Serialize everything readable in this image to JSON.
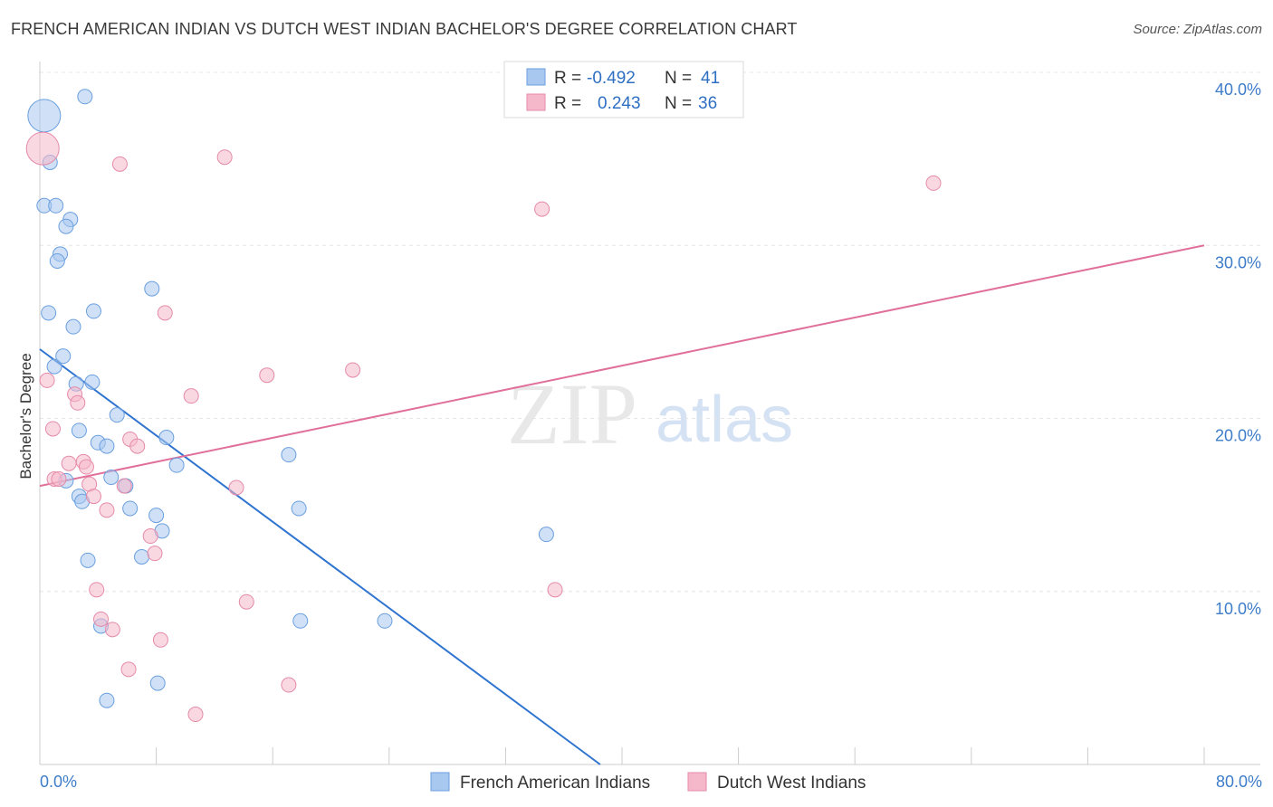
{
  "header": {
    "title": "FRENCH AMERICAN INDIAN VS DUTCH WEST INDIAN BACHELOR'S DEGREE CORRELATION CHART",
    "source": "Source: ZipAtlas.com"
  },
  "watermark": {
    "zip": "ZIP",
    "atlas": "atlas"
  },
  "legend": {
    "rows": [
      {
        "r_label": "R =",
        "r_value": "-0.492",
        "n_label": "N =",
        "n_value": "41",
        "color": "#a9c8f0"
      },
      {
        "r_label": "R =",
        "r_value": "0.243",
        "n_label": "N =",
        "n_value": "36",
        "color": "#f5b8cb"
      }
    ]
  },
  "bottom_legend": [
    {
      "label": "French American Indians",
      "color": "#a9c8f0"
    },
    {
      "label": "Dutch West Indians",
      "color": "#f5b8cb"
    }
  ],
  "chart_data": {
    "type": "scatter",
    "title": "FRENCH AMERICAN INDIAN VS DUTCH WEST INDIAN BACHELOR'S DEGREE CORRELATION CHART",
    "xlabel": "",
    "ylabel": "Bachelor's Degree",
    "xlim": [
      0,
      80
    ],
    "ylim": [
      0,
      40
    ],
    "x_tick_labels": [
      "0.0%",
      "80.0%"
    ],
    "y_ticks": [
      10,
      20,
      30,
      40
    ],
    "y_tick_labels": [
      "10.0%",
      "20.0%",
      "30.0%",
      "40.0%"
    ],
    "grid": "horizontal dashed",
    "legend_position": "top-center",
    "series": [
      {
        "name": "French American Indians",
        "color": "#a9c8f0",
        "stroke": "#6a9fdf",
        "trend_color": "#2f74d0",
        "trend": {
          "x": [
            0,
            38.5
          ],
          "y": [
            24.0,
            0
          ]
        },
        "points": [
          [
            0.3,
            37.5
          ],
          [
            3.1,
            38.6
          ],
          [
            0.7,
            34.8
          ],
          [
            0.3,
            32.3
          ],
          [
            1.1,
            32.3
          ],
          [
            2.1,
            31.5
          ],
          [
            1.8,
            31.1
          ],
          [
            1.4,
            29.5
          ],
          [
            1.2,
            29.1
          ],
          [
            7.7,
            27.5
          ],
          [
            3.7,
            26.2
          ],
          [
            0.6,
            26.1
          ],
          [
            2.3,
            25.3
          ],
          [
            1.0,
            23.0
          ],
          [
            1.6,
            23.6
          ],
          [
            3.6,
            22.1
          ],
          [
            2.5,
            22.0
          ],
          [
            5.3,
            20.2
          ],
          [
            2.7,
            19.3
          ],
          [
            8.7,
            18.9
          ],
          [
            4.0,
            18.6
          ],
          [
            4.6,
            18.4
          ],
          [
            17.1,
            17.9
          ],
          [
            9.4,
            17.3
          ],
          [
            1.8,
            16.4
          ],
          [
            4.9,
            16.6
          ],
          [
            5.9,
            16.1
          ],
          [
            2.7,
            15.5
          ],
          [
            2.9,
            15.2
          ],
          [
            17.8,
            14.8
          ],
          [
            6.2,
            14.8
          ],
          [
            8.0,
            14.4
          ],
          [
            8.4,
            13.5
          ],
          [
            34.8,
            13.3
          ],
          [
            3.3,
            11.8
          ],
          [
            7.0,
            12.0
          ],
          [
            17.9,
            8.3
          ],
          [
            23.7,
            8.3
          ],
          [
            4.2,
            8.0
          ],
          [
            8.1,
            4.7
          ],
          [
            4.6,
            3.7
          ]
        ]
      },
      {
        "name": "Dutch West Indians",
        "color": "#f5b8cb",
        "stroke": "#e58aa8",
        "trend_color": "#e0709a",
        "trend": {
          "x": [
            0,
            80
          ],
          "y": [
            16.1,
            30.0
          ]
        },
        "points": [
          [
            0.2,
            35.6
          ],
          [
            5.5,
            34.7
          ],
          [
            12.7,
            35.1
          ],
          [
            61.4,
            33.6
          ],
          [
            34.5,
            32.1
          ],
          [
            8.6,
            26.1
          ],
          [
            21.5,
            22.8
          ],
          [
            15.6,
            22.5
          ],
          [
            0.5,
            22.2
          ],
          [
            10.4,
            21.3
          ],
          [
            2.4,
            21.4
          ],
          [
            2.6,
            20.9
          ],
          [
            0.9,
            19.4
          ],
          [
            6.2,
            18.8
          ],
          [
            6.7,
            18.4
          ],
          [
            3.0,
            17.5
          ],
          [
            2.0,
            17.4
          ],
          [
            3.2,
            17.2
          ],
          [
            1.0,
            16.5
          ],
          [
            1.3,
            16.5
          ],
          [
            3.4,
            16.2
          ],
          [
            13.5,
            16.0
          ],
          [
            5.8,
            16.1
          ],
          [
            3.7,
            15.5
          ],
          [
            4.6,
            14.7
          ],
          [
            7.6,
            13.2
          ],
          [
            7.9,
            12.2
          ],
          [
            3.9,
            10.1
          ],
          [
            14.2,
            9.4
          ],
          [
            35.4,
            10.1
          ],
          [
            4.2,
            8.4
          ],
          [
            5.0,
            7.8
          ],
          [
            8.3,
            7.2
          ],
          [
            6.1,
            5.5
          ],
          [
            17.1,
            4.6
          ],
          [
            10.7,
            2.9
          ]
        ]
      }
    ]
  }
}
